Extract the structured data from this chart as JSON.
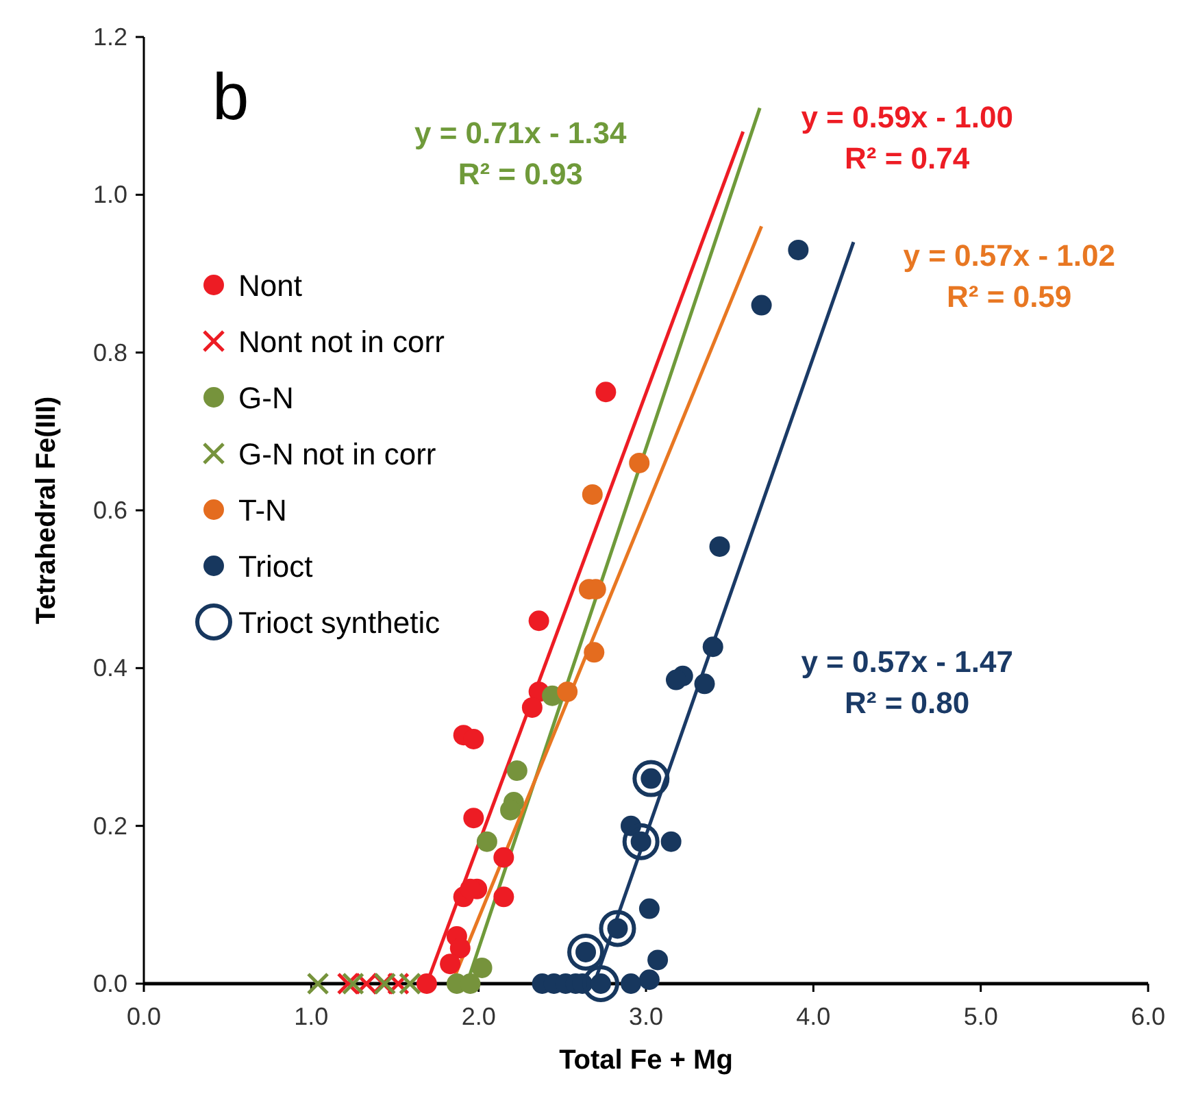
{
  "chart_data": {
    "type": "scatter",
    "title": "b",
    "xlabel": "Total Fe + Mg",
    "ylabel": "Tetrahedral Fe(III)",
    "xlim": [
      0,
      6
    ],
    "ylim": [
      0,
      1.2
    ],
    "xticks": [
      {
        "value": 0,
        "label": "0.0"
      },
      {
        "value": 1,
        "label": "1.0"
      },
      {
        "value": 2,
        "label": "2.0"
      },
      {
        "value": 3,
        "label": "3.0"
      },
      {
        "value": 4,
        "label": "4.0"
      },
      {
        "value": 5,
        "label": "5.0"
      },
      {
        "value": 6,
        "label": "6.0"
      }
    ],
    "yticks": [
      {
        "value": 0,
        "label": "0.0"
      },
      {
        "value": 0.2,
        "label": "0.2"
      },
      {
        "value": 0.4,
        "label": "0.4"
      },
      {
        "value": 0.6,
        "label": "0.6"
      },
      {
        "value": 0.8,
        "label": "0.8"
      },
      {
        "value": 1,
        "label": "1.0"
      },
      {
        "value": 1.2,
        "label": "1.2"
      }
    ],
    "grid": false,
    "legend": "top left",
    "series": [
      {
        "type": "line",
        "color": "#6f9a3a",
        "marker": "none",
        "x": [
          1.93,
          3.68
        ],
        "values": [
          0,
          1.11
        ]
      },
      {
        "type": "line",
        "color": "#ed1c24",
        "marker": "none",
        "x": [
          1.69,
          3.58
        ],
        "values": [
          0,
          1.08
        ]
      },
      {
        "type": "line",
        "color": "#e87722",
        "marker": "none",
        "x": [
          1.84,
          3.69
        ],
        "values": [
          0,
          0.96
        ]
      },
      {
        "type": "line",
        "color": "#1a3a66",
        "marker": "none",
        "x": [
          2.69,
          4.24
        ],
        "values": [
          0,
          0.94
        ]
      },
      {
        "name": "Nont",
        "color": "#ed1c24",
        "marker": "circle",
        "x": [
          2.76,
          2.36,
          2.36,
          2.32,
          1.91,
          1.97,
          1.97,
          1.99,
          2.15,
          2.15,
          1.91,
          1.87,
          1.89,
          1.83,
          1.69,
          1.95
        ],
        "values": [
          0.75,
          0.46,
          0.37,
          0.35,
          0.315,
          0.31,
          0.21,
          0.12,
          0.16,
          0.11,
          0.11,
          0.06,
          0.045,
          0.025,
          0,
          0.12
        ]
      },
      {
        "name": "Nont not in corr",
        "color": "#ed1c24",
        "marker": "cross",
        "x": [
          1.22,
          1.33,
          1.43,
          1.52
        ],
        "values": [
          0,
          0,
          0,
          0
        ]
      },
      {
        "name": "G-N",
        "color": "#76933c",
        "marker": "circle",
        "x": [
          2.44,
          2.23,
          2.21,
          2.19,
          2.05,
          2.02,
          1.87,
          1.95
        ],
        "values": [
          0.365,
          0.27,
          0.23,
          0.22,
          0.18,
          0.02,
          0,
          0
        ]
      },
      {
        "name": "G-N not in corr",
        "color": "#76933c",
        "marker": "cross",
        "x": [
          1.04,
          1.25,
          1.44,
          1.59
        ],
        "values": [
          0,
          0,
          0,
          0
        ]
      },
      {
        "name": "T-N",
        "color": "#e46c1f",
        "marker": "circle",
        "x": [
          2.66,
          2.7,
          2.68,
          2.96,
          2.69,
          2.53
        ],
        "values": [
          0.5,
          0.5,
          0.62,
          0.66,
          0.42,
          0.37
        ]
      },
      {
        "name": "Trioct",
        "color": "#17375e",
        "marker": "circle",
        "x": [
          3.91,
          3.69,
          3.44,
          3.4,
          3.22,
          3.18,
          3.35,
          2.91,
          3.15,
          3.02,
          3.07,
          3.02,
          2.91,
          2.38,
          2.45,
          2.52,
          2.58,
          2.62,
          3.03,
          2.97,
          2.83,
          2.64,
          2.73
        ],
        "values": [
          0.93,
          0.86,
          0.554,
          0.427,
          0.39,
          0.385,
          0.38,
          0.2,
          0.18,
          0.095,
          0.03,
          0.005,
          0,
          0,
          0,
          0,
          0,
          0,
          0.26,
          0.18,
          0.07,
          0.04,
          0
        ]
      },
      {
        "name": "Trioct synthetic",
        "color": "#17375e",
        "x": [
          3.03,
          2.97,
          2.83,
          2.64,
          2.73
        ],
        "values": [
          0.26,
          0.18,
          0.07,
          0.04,
          0
        ]
      }
    ],
    "annotations": [
      "y = 0.71x - 1.34\nR² = 0.93",
      "y = 0.59x - 1.00\nR² = 0.74",
      "y = 0.57x - 1.02\nR² = 0.59",
      "y = 0.57x - 1.47\nR² = 0.80"
    ]
  }
}
